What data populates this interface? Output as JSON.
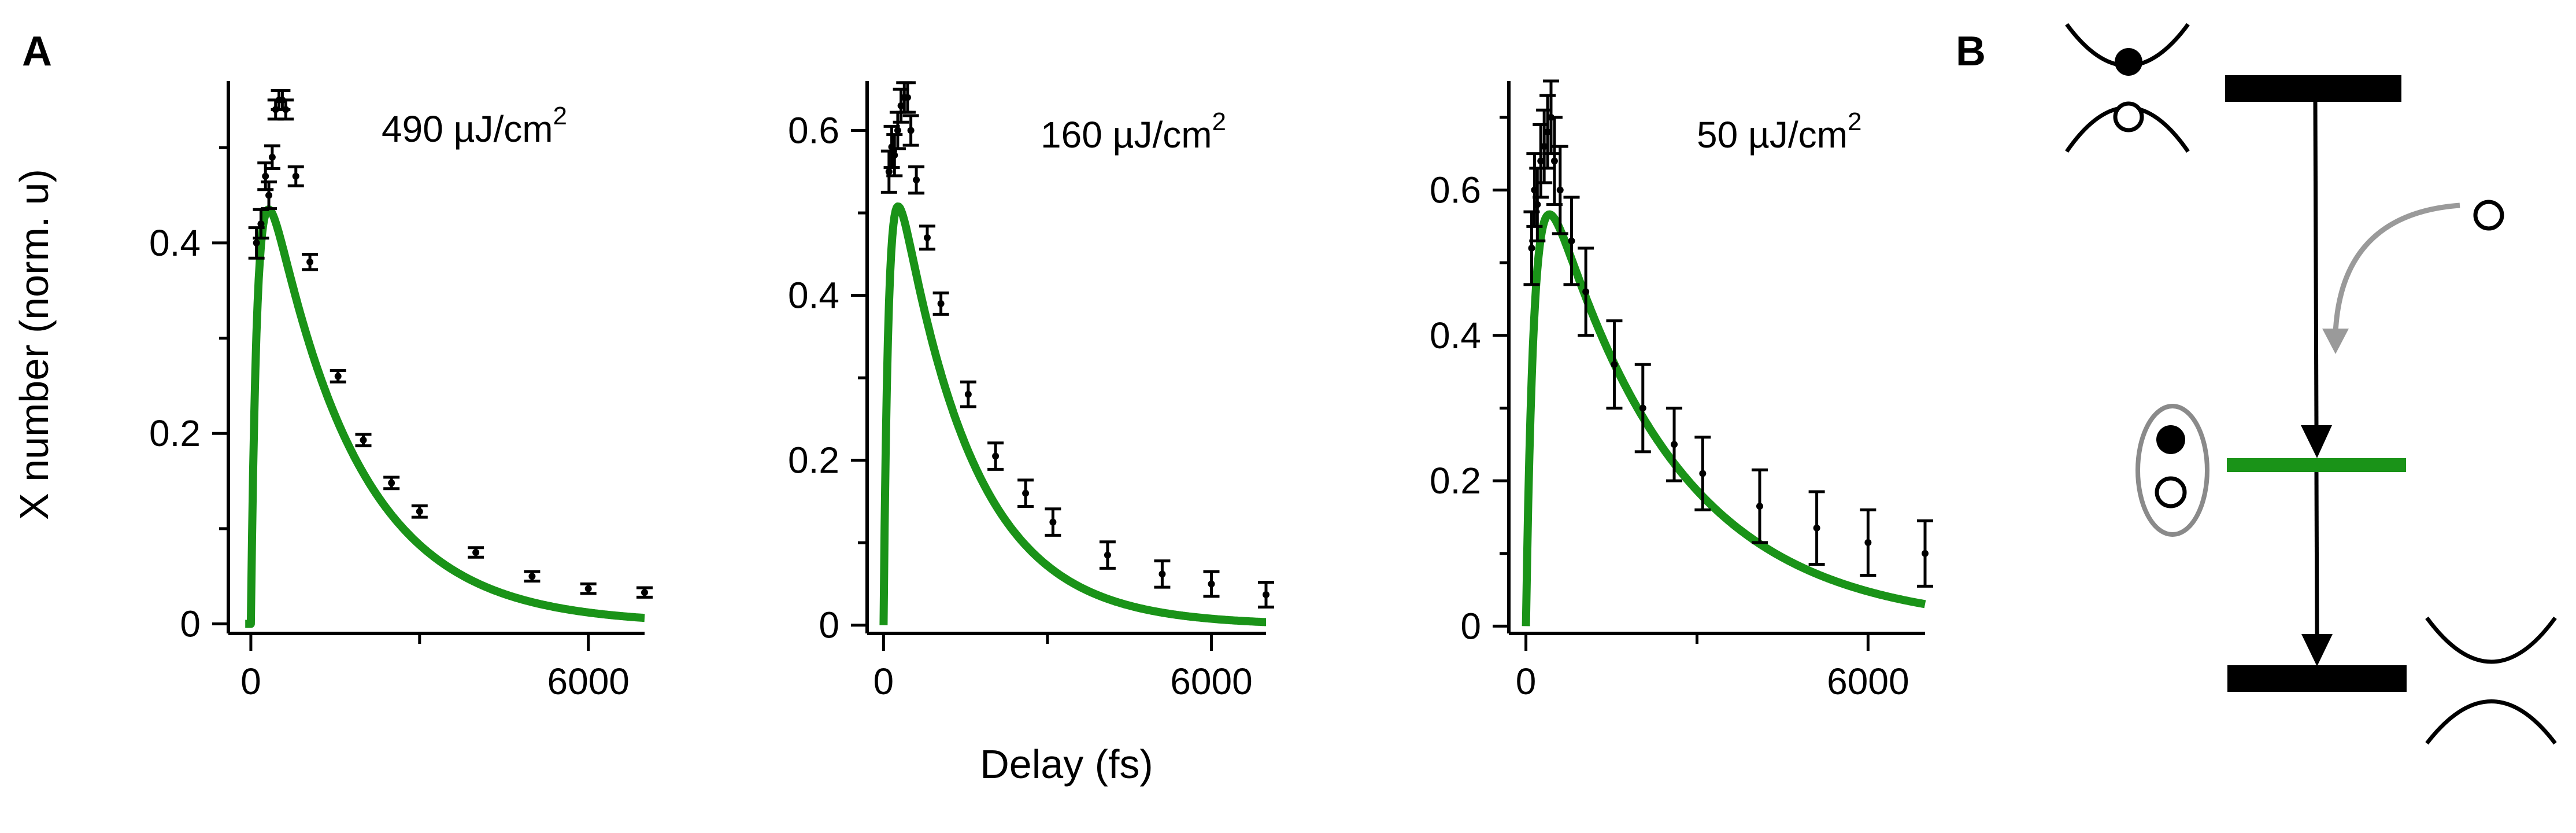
{
  "panel_labels": {
    "a": "A",
    "b": "B"
  },
  "colors": {
    "fit": "#1a9318",
    "data": "#000000",
    "arrow_gray": "#9a9a9a"
  },
  "chart_data": [
    {
      "type": "scatter",
      "panel": "A-1",
      "annotation": {
        "text": "490 µJ/cm",
        "superscript": "2"
      },
      "ylabel": "X number (norm. u)",
      "xlabel": "",
      "xlim": [
        -400,
        7000
      ],
      "ylim": [
        -0.01,
        0.57
      ],
      "xticks": [
        0,
        6000
      ],
      "xtick_labels": [
        "0",
        "6000"
      ],
      "yticks": [
        0,
        0.2,
        0.4
      ],
      "ytick_labels": [
        "0",
        "0.2",
        "0.4"
      ],
      "series": [
        {
          "name": "data",
          "x": [
            100,
            180,
            260,
            320,
            380,
            440,
            500,
            560,
            620,
            800,
            1050,
            1550,
            2000,
            2500,
            3000,
            4000,
            5000,
            6000,
            7000
          ],
          "y": [
            0.4,
            0.42,
            0.47,
            0.45,
            0.49,
            0.54,
            0.55,
            0.55,
            0.54,
            0.47,
            0.38,
            0.26,
            0.193,
            0.148,
            0.118,
            0.075,
            0.05,
            0.037,
            0.033
          ],
          "err": [
            0.016,
            0.015,
            0.014,
            0.014,
            0.012,
            0.01,
            0.01,
            0.01,
            0.01,
            0.01,
            0.008,
            0.006,
            0.006,
            0.006,
            0.006,
            0.005,
            0.005,
            0.005,
            0.005
          ]
        },
        {
          "name": "fit",
          "model": {
            "t0": 0,
            "tau_rise": 120,
            "tau_decay": 1550,
            "amp": 0.575
          }
        }
      ]
    },
    {
      "type": "scatter",
      "panel": "A-2",
      "annotation": {
        "text": "160 µJ/cm",
        "superscript": "2"
      },
      "ylabel": "",
      "xlabel": "Delay (fs)",
      "xlim": [
        -300,
        7000
      ],
      "ylim": [
        -0.01,
        0.66
      ],
      "xticks": [
        0,
        6000
      ],
      "xtick_labels": [
        "0",
        "6000"
      ],
      "yticks": [
        0,
        0.2,
        0.4,
        0.6
      ],
      "ytick_labels": [
        "0",
        "0.2",
        "0.4",
        "0.6"
      ],
      "series": [
        {
          "name": "data",
          "x": [
            100,
            150,
            200,
            260,
            320,
            380,
            440,
            500,
            600,
            800,
            1050,
            1550,
            2050,
            2600,
            3100,
            4100,
            5100,
            6000,
            7000
          ],
          "y": [
            0.55,
            0.58,
            0.57,
            0.6,
            0.63,
            0.64,
            0.64,
            0.6,
            0.54,
            0.47,
            0.39,
            0.28,
            0.205,
            0.16,
            0.125,
            0.085,
            0.062,
            0.05,
            0.037
          ],
          "err": [
            0.025,
            0.025,
            0.025,
            0.022,
            0.02,
            0.018,
            0.018,
            0.018,
            0.016,
            0.014,
            0.013,
            0.015,
            0.016,
            0.016,
            0.016,
            0.016,
            0.016,
            0.015,
            0.015
          ]
        },
        {
          "name": "fit",
          "model": {
            "t0": 0,
            "tau_rise": 100,
            "tau_decay": 1350,
            "amp": 0.665
          }
        }
      ]
    },
    {
      "type": "scatter",
      "panel": "A-3",
      "annotation": {
        "text": "50 µJ/cm",
        "superscript": "2"
      },
      "ylabel": "",
      "xlabel": "",
      "xlim": [
        -300,
        7000
      ],
      "ylim": [
        -0.01,
        0.75
      ],
      "xticks": [
        0,
        6000
      ],
      "xtick_labels": [
        "0",
        "6000"
      ],
      "yticks": [
        0,
        0.2,
        0.4,
        0.6
      ],
      "ytick_labels": [
        "0",
        "0.2",
        "0.4",
        "0.6"
      ],
      "series": [
        {
          "name": "data",
          "x": [
            100,
            150,
            200,
            260,
            320,
            380,
            440,
            500,
            600,
            800,
            1050,
            1550,
            2050,
            2600,
            3100,
            4100,
            5100,
            6000,
            7000
          ],
          "y": [
            0.52,
            0.6,
            0.58,
            0.64,
            0.66,
            0.68,
            0.7,
            0.64,
            0.6,
            0.53,
            0.46,
            0.36,
            0.3,
            0.25,
            0.21,
            0.165,
            0.135,
            0.115,
            0.1
          ],
          "err": [
            0.05,
            0.05,
            0.05,
            0.05,
            0.05,
            0.05,
            0.05,
            0.06,
            0.06,
            0.06,
            0.06,
            0.06,
            0.06,
            0.05,
            0.05,
            0.05,
            0.05,
            0.045,
            0.045
          ]
        },
        {
          "name": "fit",
          "model": {
            "t0": 0,
            "tau_rise": 150,
            "tau_decay": 2200,
            "amp": 0.73
          }
        }
      ]
    }
  ],
  "diagram": {
    "levels": [
      "upper-band-edge",
      "exciton-level",
      "lower-band-edge"
    ],
    "transitions": [
      "upper-to-exciton",
      "exciton-to-lower",
      "capture-arrow"
    ]
  }
}
